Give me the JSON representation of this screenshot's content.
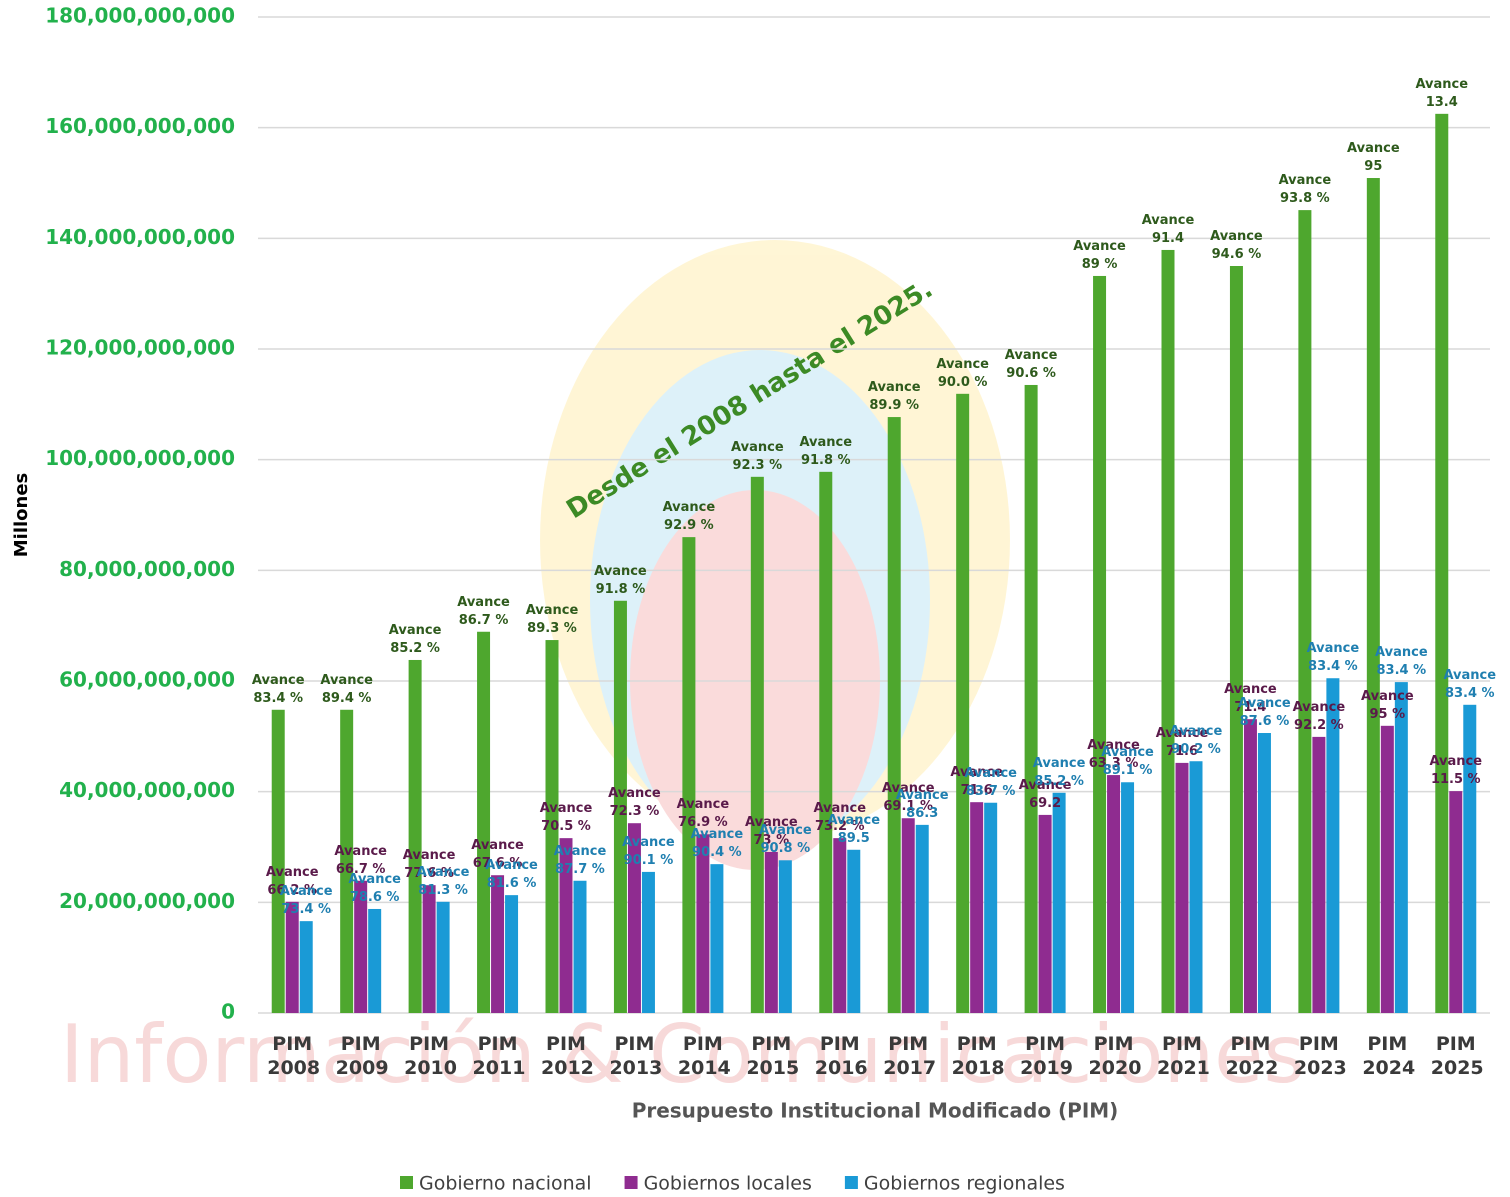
{
  "chart_data": {
    "type": "bar",
    "y_label": "Millones",
    "x_label": "Presupuesto Institucional Modificado (PIM)",
    "annotation": "Desde el 2008 hasta el 2025.",
    "watermark": "Información & Comunicaciones",
    "categories": [
      "PIM 2008",
      "PIM 2009",
      "PIM 2010",
      "PIM 2011",
      "PIM 2012",
      "PIM 2013",
      "PIM 2014",
      "PIM 2015",
      "PIM 2016",
      "PIM 2017",
      "PIM 2018",
      "PIM 2019",
      "PIM 2020",
      "PIM 2021",
      "PIM 2022",
      "PIM 2023",
      "PIM 2024",
      "PIM 2025"
    ],
    "series": [
      {
        "name": "Gobierno nacional",
        "color": "#4ea72e",
        "label_color": "#2e5a1c",
        "values": [
          54800000000,
          54800000000,
          63800000000,
          68900000000,
          67400000000,
          74500000000,
          86000000000,
          96900000000,
          97800000000,
          107700000000,
          111900000000,
          113500000000,
          133200000000,
          137900000000,
          135000000000,
          145100000000,
          150900000000,
          162500000000
        ],
        "labels": [
          "Avance 83.4 %",
          "Avance 89.4 %",
          "Avance 85.2 %",
          "Avance 86.7 %",
          "Avance 89.3 %",
          "Avance 91.8 %",
          "Avance 92.9 %",
          "Avance 92.3 %",
          "Avance 91.8 %",
          "Avance 89.9 %",
          "Avance 90.0 %",
          "Avance 90.6 %",
          "Avance 89 %",
          "Avance 91.4",
          "Avance 94.6 %",
          "Avance 93.8 %",
          "Avance 95",
          "Avance 13.4"
        ]
      },
      {
        "name": "Gobiernos locales",
        "color": "#8f2c90",
        "label_color": "#5a1a4a",
        "values": [
          20100000000,
          23900000000,
          23100000000,
          24900000000,
          31600000000,
          34300000000,
          32300000000,
          29100000000,
          31600000000,
          35200000000,
          38100000000,
          35800000000,
          43000000000,
          45200000000,
          53100000000,
          49900000000,
          51900000000,
          40100000000
        ],
        "labels": [
          "Avance 66.2 %",
          "Avance 66.7 %",
          "Avance 77.6 %",
          "Avance 67.6 %",
          "Avance 70.5 %",
          "Avance 72.3 %",
          "Avance 76.9 %",
          "Avance 73 %",
          "Avance 73.2 %",
          "Avance 69.1 %",
          "Avance 71.6",
          "Avance 69.2",
          "Avance 63.3 %",
          "Avance 71.6",
          "Avance 71.4",
          "Avance 92.2 %",
          "Avance 95 %",
          "Avance 11.5 %"
        ]
      },
      {
        "name": "Gobiernos regionales",
        "color": "#1a9ad6",
        "label_color": "#1f7fb0",
        "values": [
          16600000000,
          18800000000,
          20100000000,
          21300000000,
          23900000000,
          25500000000,
          26900000000,
          27600000000,
          29500000000,
          34000000000,
          38000000000,
          39800000000,
          41700000000,
          45500000000,
          50600000000,
          60500000000,
          59800000000,
          55700000000
        ],
        "labels": [
          "Avance 73.4 %",
          "Avance 78.6 %",
          "Avance 81.3 %",
          "Avance 81.6 %",
          "Avance 87.7 %",
          "Avance 90.1 %",
          "Avance 90.4 %",
          "Avance 90.8 %",
          "Avance 89.5",
          "Avance 86.3",
          "Avance 83.7 %",
          "Avance 85.2 %",
          "Avance 89.1 %",
          "Avance 90.2 %",
          "Avance 87.6 %",
          "Avance 83.4 %",
          "Avance 83.4 %",
          "Avance 83.4 %"
        ]
      }
    ],
    "ylim": [
      0,
      180000000000
    ],
    "yticks": [
      0,
      {
        "value": 20000000000,
        "label": "20,000,000,000"
      },
      {
        "value": 40000000000,
        "label": "40,000,000,000"
      },
      {
        "value": 60000000000,
        "label": "60,000,000,000"
      },
      {
        "value": 80000000000,
        "label": "80,000,000,000"
      },
      {
        "value": 100000000000,
        "label": "100,000,000,000"
      },
      {
        "value": 120000000000,
        "label": "120,000,000,000"
      },
      {
        "value": 140000000000,
        "label": "140,000,000,000"
      },
      {
        "value": 160000000000,
        "label": "160,000,000,000"
      },
      {
        "value": 180000000000,
        "label": "180,000,000,000"
      }
    ],
    "grid": true,
    "legend": "bottom"
  }
}
